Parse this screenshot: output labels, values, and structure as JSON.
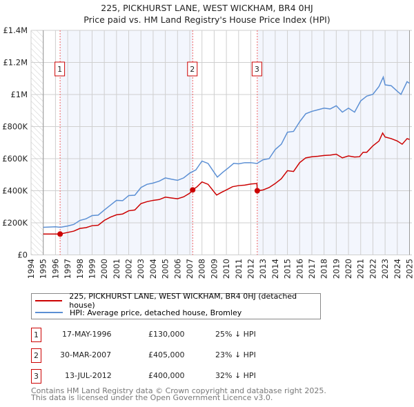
{
  "chart_data": {
    "type": "line",
    "title": "225, PICKHURST LANE, WEST WICKHAM, BR4 0HJ",
    "subtitle": "Price paid vs. HM Land Registry's House Price Index (HPI)",
    "xlim": [
      1994,
      2025
    ],
    "ylim": [
      0,
      1400000
    ],
    "grid": true,
    "x_ticks": [
      "1994",
      "1995",
      "1996",
      "1997",
      "1998",
      "1999",
      "2000",
      "2001",
      "2002",
      "2003",
      "2004",
      "2005",
      "2006",
      "2007",
      "2008",
      "2009",
      "2010",
      "2011",
      "2012",
      "2013",
      "2014",
      "2015",
      "2016",
      "2017",
      "2018",
      "2019",
      "2020",
      "2021",
      "2022",
      "2023",
      "2024",
      "2025"
    ],
    "y_ticks": [
      {
        "v": 0,
        "label": "£0"
      },
      {
        "v": 200000,
        "label": "£200K"
      },
      {
        "v": 400000,
        "label": "£400K"
      },
      {
        "v": 600000,
        "label": "£600K"
      },
      {
        "v": 800000,
        "label": "£800K"
      },
      {
        "v": 1000000,
        "label": "£1M"
      },
      {
        "v": 1200000,
        "label": "£1.2M"
      },
      {
        "v": 1400000,
        "label": "£1.4M"
      }
    ],
    "series": [
      {
        "name": "225, PICKHURST LANE, WEST WICKHAM, BR4 0HJ (detached house)",
        "color": "#cc0000",
        "x": [
          1995,
          1996.38,
          1997,
          1997.5,
          1998,
          1998.5,
          1999,
          1999.5,
          2000,
          2000.5,
          2001,
          2001.5,
          2002,
          2002.5,
          2003,
          2003.5,
          2004,
          2004.5,
          2005,
          2005.5,
          2006,
          2006.5,
          2007,
          2007.24,
          2007.6,
          2008,
          2008.5,
          2009.2,
          2009.6,
          2010,
          2010.5,
          2011,
          2011.5,
          2012,
          2012.5,
          2012.53,
          2013,
          2013.5,
          2014,
          2014.5,
          2015,
          2015.5,
          2016,
          2016.5,
          2017,
          2017.5,
          2018,
          2018.5,
          2019,
          2019.5,
          2020,
          2020.5,
          2020.9,
          2021.2,
          2021.5,
          2022,
          2022.5,
          2022.8,
          2023,
          2023.5,
          2024,
          2024.4,
          2024.8,
          2025
        ],
        "values": [
          130000,
          130000,
          140000,
          148000,
          165000,
          170000,
          182000,
          185000,
          215000,
          235000,
          250000,
          255000,
          275000,
          280000,
          320000,
          332000,
          340000,
          345000,
          360000,
          355000,
          350000,
          362000,
          385000,
          405000,
          425000,
          455000,
          440000,
          373000,
          390000,
          405000,
          425000,
          432000,
          435000,
          442000,
          445000,
          400000,
          405000,
          420000,
          445000,
          475000,
          525000,
          520000,
          575000,
          605000,
          612000,
          615000,
          620000,
          622000,
          628000,
          605000,
          617000,
          610000,
          612000,
          640000,
          640000,
          680000,
          710000,
          760000,
          735000,
          725000,
          710000,
          690000,
          725000,
          720000
        ]
      },
      {
        "name": "HPI: Average price, detached house, Bromley",
        "color": "#5b8fd4",
        "x": [
          1995,
          1996,
          1996.4,
          1997,
          1997.5,
          1998,
          1998.5,
          1999,
          1999.5,
          2000,
          2000.5,
          2001,
          2001.5,
          2002,
          2002.5,
          2003,
          2003.5,
          2004,
          2004.5,
          2005,
          2005.5,
          2006,
          2006.5,
          2007,
          2007.5,
          2008,
          2008.5,
          2009.26,
          2009.7,
          2010.2,
          2010.6,
          2011,
          2011.5,
          2012,
          2012.5,
          2013,
          2013.5,
          2014,
          2014.5,
          2015,
          2015.5,
          2016,
          2016.5,
          2017,
          2017.5,
          2018,
          2018.5,
          2019,
          2019.5,
          2020,
          2020.5,
          2021,
          2021.5,
          2022,
          2022.5,
          2022.85,
          2023,
          2023.5,
          2024,
          2024.3,
          2024.8,
          2025
        ],
        "values": [
          172000,
          175000,
          172000,
          180000,
          190000,
          215000,
          225000,
          245000,
          248000,
          280000,
          310000,
          340000,
          338000,
          370000,
          372000,
          420000,
          440000,
          448000,
          460000,
          480000,
          472000,
          465000,
          480000,
          510000,
          530000,
          585000,
          570000,
          485000,
          515000,
          545000,
          571000,
          568000,
          575000,
          575000,
          570000,
          593000,
          600000,
          657000,
          690000,
          765000,
          770000,
          830000,
          880000,
          895000,
          905000,
          915000,
          910000,
          930000,
          890000,
          915000,
          890000,
          960000,
          990000,
          1001000,
          1050000,
          1109000,
          1060000,
          1055000,
          1020000,
          1001000,
          1080000,
          1070000
        ]
      }
    ],
    "sales": [
      {
        "id": "1",
        "x": 1996.38,
        "value": 130000,
        "date": "17-MAY-1996",
        "price": "£130,000",
        "hpi": "25% ↓ HPI"
      },
      {
        "id": "2",
        "x": 2007.24,
        "value": 405000,
        "date": "30-MAR-2007",
        "price": "£405,000",
        "hpi": "23% ↓ HPI"
      },
      {
        "id": "3",
        "x": 2012.53,
        "value": 400000,
        "date": "13-JUL-2012",
        "price": "£400,000",
        "hpi": "32% ↓ HPI"
      }
    ],
    "legend_position": "below"
  },
  "footer": {
    "line1": "Contains HM Land Registry data © Crown copyright and database right 2025.",
    "line2": "This data is licensed under the Open Government Licence v3.0."
  }
}
